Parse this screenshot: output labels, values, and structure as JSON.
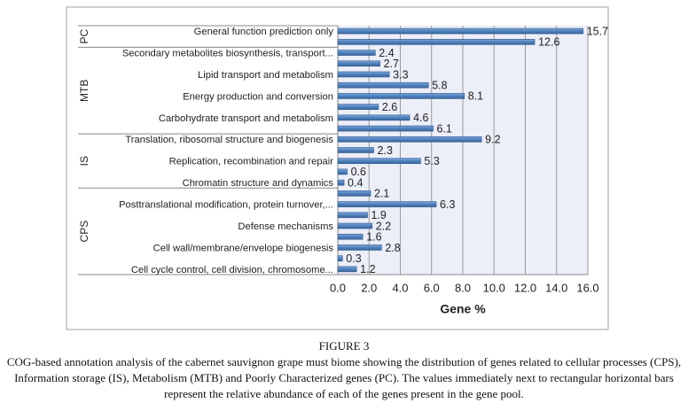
{
  "chart_data": {
    "type": "bar",
    "orientation": "horizontal",
    "categories": [
      "General function prediction only",
      null,
      "Secondary metabolites biosynthesis, transport...",
      null,
      "Lipid transport and metabolism",
      null,
      "Energy production and conversion",
      null,
      "Carbohydrate transport and metabolism",
      null,
      "Translation, ribosomal structure and biogenesis",
      null,
      "Replication, recombination and repair",
      null,
      "Chromatin structure and dynamics",
      null,
      "Posttranslational modification, protein turnover,...",
      null,
      "Defense mechanisms",
      null,
      "Cell wall/membrane/envelope biogenesis",
      null,
      "Cell cycle control, cell division, chromosome..."
    ],
    "values": [
      15.7,
      12.6,
      2.4,
      2.7,
      3.3,
      5.8,
      8.1,
      2.6,
      4.6,
      6.1,
      9.2,
      2.3,
      5.3,
      0.6,
      0.4,
      2.1,
      6.3,
      1.9,
      2.2,
      1.6,
      2.8,
      0.3,
      1.2
    ],
    "groups": [
      {
        "label": "PC",
        "size": 2
      },
      {
        "label": "MTB",
        "size": 8
      },
      {
        "label": "IS",
        "size": 5
      },
      {
        "label": "CPS",
        "size": 8
      }
    ],
    "color": "#4f81bd",
    "x_label": "Gene %",
    "xlim": [
      0,
      16
    ],
    "xticks": [
      {
        "value": 0,
        "label": "0.0"
      },
      {
        "value": 2,
        "label": "2.0"
      },
      {
        "value": 4,
        "label": "4.0"
      },
      {
        "value": 6,
        "label": "6.0"
      },
      {
        "value": 8,
        "label": "8.0"
      },
      {
        "value": 10,
        "label": "10.0"
      },
      {
        "value": 12,
        "label": "12.0"
      },
      {
        "value": 14,
        "label": "14.0"
      },
      {
        "value": 16,
        "label": "16.0"
      }
    ],
    "grid": true
  },
  "caption": {
    "title": "FIGURE 3",
    "text": "COG-based annotation analysis of the cabernet sauvignon grape must biome showing the distribution of genes related to cellular processes (CPS), Information storage (IS), Metabolism (MTB) and Poorly Characterized genes (PC). The values immediately next to rectangular horizontal bars represent the relative abundance of each of the genes present in the gene pool."
  }
}
